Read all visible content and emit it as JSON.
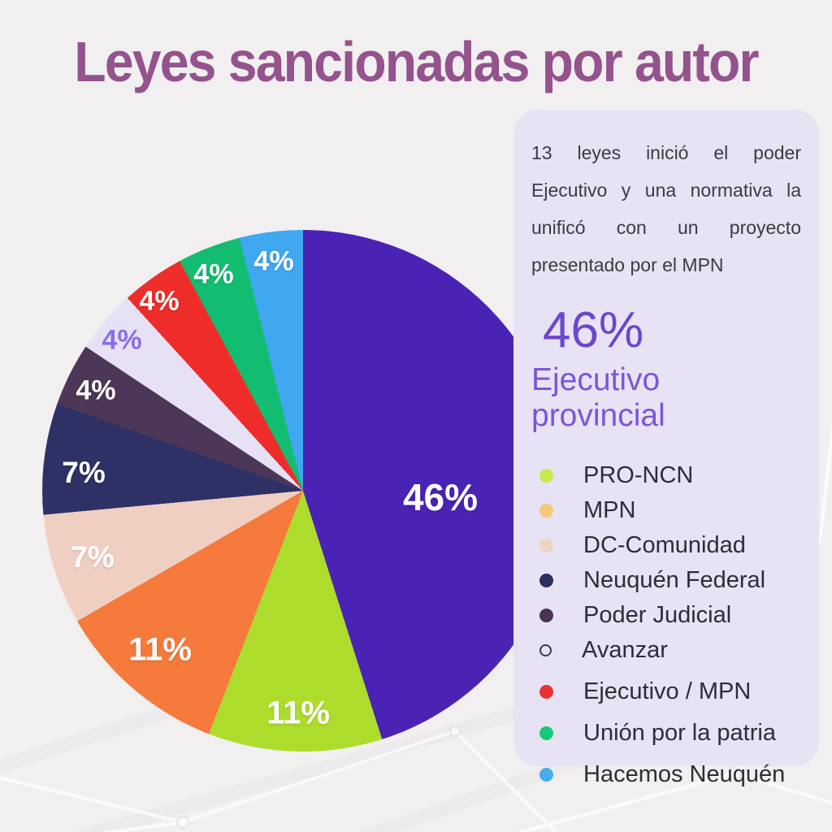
{
  "title": "Leyes sancionadas por autor",
  "panel": {
    "paragraph": "13 leyes inició el poder Ejecutivo y una normativa la unificó con un proyecto presentado por el MPN",
    "highlight_value": "46%",
    "highlight_label": "Ejecutivo provincial"
  },
  "chart_data": {
    "type": "pie",
    "title": "Leyes sancionadas por autor",
    "start_angle_deg": 0,
    "direction": "clockwise",
    "legend_position": "right",
    "slices": [
      {
        "name": "Ejecutivo provincial",
        "value_pct": 46,
        "label": "46%",
        "color": "#4A23B4",
        "label_color": "#FFFFFF"
      },
      {
        "name": "PRO-NCN",
        "value_pct": 11,
        "label": "11%",
        "color": "#AEDC2C",
        "label_color": "#FFFFFF"
      },
      {
        "name": "MPN",
        "value_pct": 11,
        "label": "11%",
        "color": "#F57A3C",
        "label_color": "#FFFFFF"
      },
      {
        "name": "DC-Comunidad",
        "value_pct": 7,
        "label": "7%",
        "color": "#F0CFC3",
        "label_color": "#FFFFFF"
      },
      {
        "name": "Neuquén Federal",
        "value_pct": 7,
        "label": "7%",
        "color": "#2E3166",
        "label_color": "#FFFFFF"
      },
      {
        "name": "Poder Judicial",
        "value_pct": 4,
        "label": "4%",
        "color": "#4C3758",
        "label_color": "#FFFFFF"
      },
      {
        "name": "Avanzar",
        "value_pct": 4,
        "label": "4%",
        "color": "#E7E1F6",
        "label_color": "#8A6FE3"
      },
      {
        "name": "Ejecutivo / MPN",
        "value_pct": 4,
        "label": "4%",
        "color": "#EE2D2B",
        "label_color": "#FFFFFF"
      },
      {
        "name": "Unión por la patria",
        "value_pct": 4,
        "label": "4%",
        "color": "#12BD71",
        "label_color": "#FFFFFF"
      },
      {
        "name": "Hacemos Neuquén",
        "value_pct": 4,
        "label": "4%",
        "color": "#3FA8F0",
        "label_color": "#FFFFFF"
      }
    ]
  },
  "legend": {
    "items": [
      {
        "label": "PRO-NCN",
        "color": "#C6E94E",
        "style": "filled"
      },
      {
        "label": "MPN",
        "color": "#F6C878",
        "style": "filled"
      },
      {
        "label": "DC-Comunidad",
        "color": "#F0D4C2",
        "style": "filled"
      },
      {
        "label": "Neuquén Federal",
        "color": "#2B2F5C",
        "style": "filled"
      },
      {
        "label": "Poder Judicial",
        "color": "#4A3355",
        "style": "filled"
      },
      {
        "label": "Avanzar",
        "color": "#3B3B45",
        "style": "hollow"
      },
      {
        "label": "Ejecutivo / MPN",
        "color": "#E93330",
        "style": "filled"
      },
      {
        "label": "Unión por la patria",
        "color": "#17C877",
        "style": "filled"
      },
      {
        "label": "Hacemos Neuquén",
        "color": "#47ACEC",
        "style": "filled"
      }
    ]
  },
  "colors": {
    "page_background": "#F1EFF0",
    "title": "#94538C",
    "panel_background": "#E8E2F5",
    "highlight_purple": "#6B46D0"
  }
}
